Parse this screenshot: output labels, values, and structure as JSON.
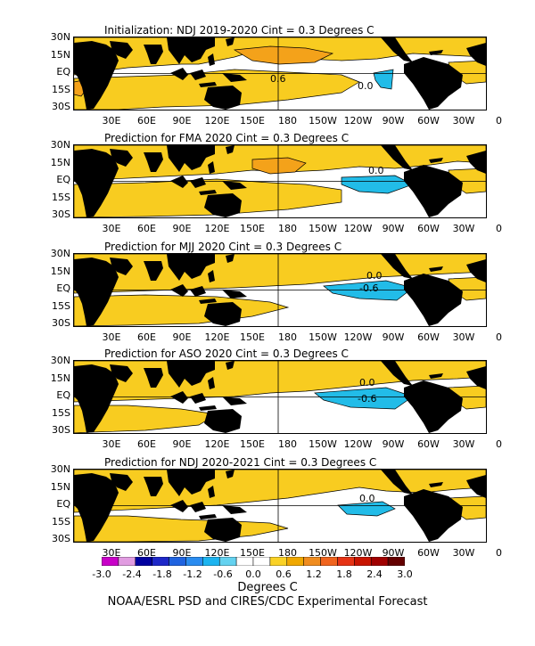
{
  "panels": [
    {
      "title": "Initialization: NDJ 2019-2020  Cint = 0.3 Degrees C",
      "contour_labels": [
        "0.6",
        "0.0"
      ]
    },
    {
      "title": "Prediction for FMA 2020  Cint = 0.3 Degrees C",
      "contour_labels": [
        "0.0"
      ]
    },
    {
      "title": "Prediction for MJJ 2020  Cint = 0.3 Degrees C",
      "contour_labels": [
        "0.0",
        "-0.6"
      ]
    },
    {
      "title": "Prediction for ASO 2020  Cint = 0.3 Degrees C",
      "contour_labels": [
        "0.0",
        "-0.6"
      ]
    },
    {
      "title": "Prediction for NDJ 2020-2021  Cint = 0.3 Degrees C",
      "contour_labels": [
        "0.0"
      ]
    }
  ],
  "lat_labels": [
    "30N",
    "15N",
    "EQ",
    "15S",
    "30S"
  ],
  "lon_labels": [
    "30E",
    "60E",
    "90E",
    "120E",
    "150E",
    "180",
    "150W",
    "120W",
    "90W",
    "60W",
    "30W",
    "0"
  ],
  "colorbar": {
    "colors": [
      "#c800c8",
      "#e19ce1",
      "#0000a0",
      "#1e28c8",
      "#1f63e0",
      "#2a8cf0",
      "#1cb4f0",
      "#64d2f0",
      "#ffffff",
      "#ffffff",
      "#fad226",
      "#f0a800",
      "#f08c1e",
      "#f0641e",
      "#e63214",
      "#c81400",
      "#a00000",
      "#640000"
    ],
    "ticks": [
      "-3.0",
      "-2.4",
      "-1.8",
      "-1.2",
      "-0.6",
      "0.0",
      "0.6",
      "1.2",
      "1.8",
      "2.4",
      "3.0"
    ]
  },
  "units_label": "Degrees C",
  "footer": "NOAA/ESRL PSD and CIRES/CDC Experimental Forecast",
  "colors": {
    "land": "#000000",
    "warm_light": "#f8cc20",
    "warm_med": "#f4a21a",
    "cold_light": "#22bce8",
    "cold_dark": "#1e8fe0"
  }
}
